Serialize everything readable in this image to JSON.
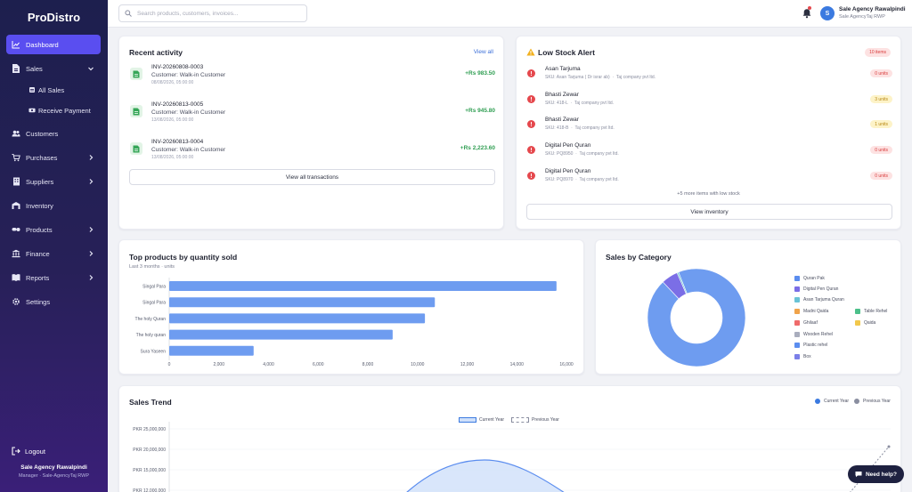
{
  "app": {
    "brand": "ProDistro"
  },
  "sidebar": {
    "items": [
      {
        "label": "Dashboard",
        "icon": "chart-line-icon",
        "active": true
      },
      {
        "label": "Sales",
        "icon": "receipt-icon",
        "expanded": true
      },
      {
        "label": "Customers",
        "icon": "users-icon"
      },
      {
        "label": "Purchases",
        "icon": "cart-icon"
      },
      {
        "label": "Suppliers",
        "icon": "building-icon"
      },
      {
        "label": "Inventory",
        "icon": "warehouse-icon"
      },
      {
        "label": "Products",
        "icon": "pills-icon"
      },
      {
        "label": "Finance",
        "icon": "bank-icon"
      },
      {
        "label": "Reports",
        "icon": "book-icon"
      },
      {
        "label": "Settings",
        "icon": "gear-icon"
      }
    ],
    "sales_sub": [
      {
        "label": "All Sales",
        "icon": "list-icon"
      },
      {
        "label": "Receive Payment",
        "icon": "money-icon"
      }
    ],
    "logout": "Logout",
    "footer_name": "Sale Agency Rawalpindi",
    "footer_role": "Manager · Sale-AgencyTaj RWP"
  },
  "topbar": {
    "search_placeholder": "Search products, customers, invoices...",
    "user_initial": "S",
    "user_name": "Sale Agency Rawalpindi",
    "user_role": "Sale AgencyTaj RWP"
  },
  "recent_activity": {
    "title": "Recent activity",
    "view_all": "View all",
    "transactions": [
      {
        "invoice": "INV-20260808-0003",
        "customer": "Customer: Walk-in Customer",
        "date": "08/08/2026, 05:00:00",
        "amount": "+Rs 983.50"
      },
      {
        "invoice": "INV-20260813-0005",
        "customer": "Customer: Walk-in Customer",
        "date": "13/08/2026, 05:00:00",
        "amount": "+Rs 945.80"
      },
      {
        "invoice": "INV-20260813-0004",
        "customer": "Customer: Walk-in Customer",
        "date": "13/08/2026, 05:00:00",
        "amount": "+Rs 2,223.60"
      }
    ],
    "button": "View all transactions"
  },
  "low_stock": {
    "title": "Low Stock Alert",
    "count": "10 items",
    "items": [
      {
        "name": "Asan Tarjuma",
        "sku": "SKU: Asan Tarjuma ( Dr israr ab)",
        "supplier": "Taj company pvt ltd.",
        "units": "0 units",
        "level": "red"
      },
      {
        "name": "Bhasti Zewar",
        "sku": "SKU: 418-L",
        "supplier": "Taj company pvt ltd.",
        "units": "3 units",
        "level": "yellow"
      },
      {
        "name": "Bhasti Zewar",
        "sku": "SKU: 418-B",
        "supplier": "Taj company pvt ltd.",
        "units": "1 units",
        "level": "yellow"
      },
      {
        "name": "Digital Pen Quran",
        "sku": "SKU: PQ8950",
        "supplier": "Taj company pvt ltd.",
        "units": "0 units",
        "level": "red"
      },
      {
        "name": "Digital Pen Quran",
        "sku": "SKU: PQ8970",
        "supplier": "Taj company pvt ltd.",
        "units": "0 units",
        "level": "red"
      }
    ],
    "more_text": "+5 more items with low stock",
    "button": "View inventory"
  },
  "top_products": {
    "title": "Top products by quantity sold",
    "subtitle": "Last 3 months · units"
  },
  "sales_category": {
    "title": "Sales by Category",
    "legend": [
      {
        "label": "Quran Pak",
        "color": "#5b8def"
      },
      {
        "label": "Digital Pen Quran",
        "color": "#7b6ee6"
      },
      {
        "label": "Asan Tarjuma Quran",
        "color": "#69c3d6"
      },
      {
        "label": "Madni Qaida",
        "color": "#f0a34a"
      },
      {
        "label": "Table Rehel",
        "color": "#4cc08a"
      },
      {
        "label": "Ghilaaf",
        "color": "#ef6b6b"
      },
      {
        "label": "Qaida",
        "color": "#f2c84b"
      },
      {
        "label": "Wooden Rehel",
        "color": "#a9adbd"
      },
      {
        "label": "Plastic rehel",
        "color": "#5b8def"
      },
      {
        "label": "Box",
        "color": "#7b7fe8"
      }
    ]
  },
  "sales_trend": {
    "title": "Sales Trend",
    "legend_current": "Current Year",
    "legend_previous": "Previous Year",
    "inner_legend_current": "Current Year",
    "inner_legend_previous": "Previous Year"
  },
  "help": {
    "label": "Need help?"
  },
  "chart_data": [
    {
      "type": "bar",
      "orientation": "horizontal",
      "title": "Top products by quantity sold",
      "subtitle": "Last 3 months · units",
      "categories": [
        "Singal Para",
        "Singal Para",
        "The holy Quran",
        "The holy quran",
        "Sura Yaseen"
      ],
      "values": [
        15600,
        10700,
        10300,
        9000,
        3400
      ],
      "xlim": [
        0,
        16000
      ],
      "x_ticks": [
        0,
        2000,
        4000,
        6000,
        8000,
        10000,
        12000,
        14000,
        16000
      ],
      "x_tick_labels": [
        "0",
        "2,000",
        "4,000",
        "6,000",
        "8,000",
        "10,000",
        "12,000",
        "14,000",
        "16,000"
      ],
      "color": "#6e9cf0"
    },
    {
      "type": "pie",
      "style": "donut",
      "title": "Sales by Category",
      "labels": [
        "Quran Pak",
        "Digital Pen Quran",
        "Asan Tarjuma Quran"
      ],
      "values": [
        94,
        5.5,
        0.5
      ],
      "colors": [
        "#6e9cf0",
        "#7b6ee6",
        "#69c3d6"
      ]
    },
    {
      "type": "line",
      "title": "Sales Trend",
      "y_tick_labels": [
        "PKR 25,000,000",
        "PKR 20,000,000",
        "PKR 15,000,000",
        "PKR 12,000,000"
      ],
      "y_ticks": [
        25000000,
        20000000,
        15000000,
        12000000
      ],
      "series": [
        {
          "name": "Current Year",
          "color": "#5b8def",
          "style": "area-smooth"
        },
        {
          "name": "Previous Year",
          "color": "#8a8ea0",
          "style": "dashed"
        }
      ]
    }
  ]
}
